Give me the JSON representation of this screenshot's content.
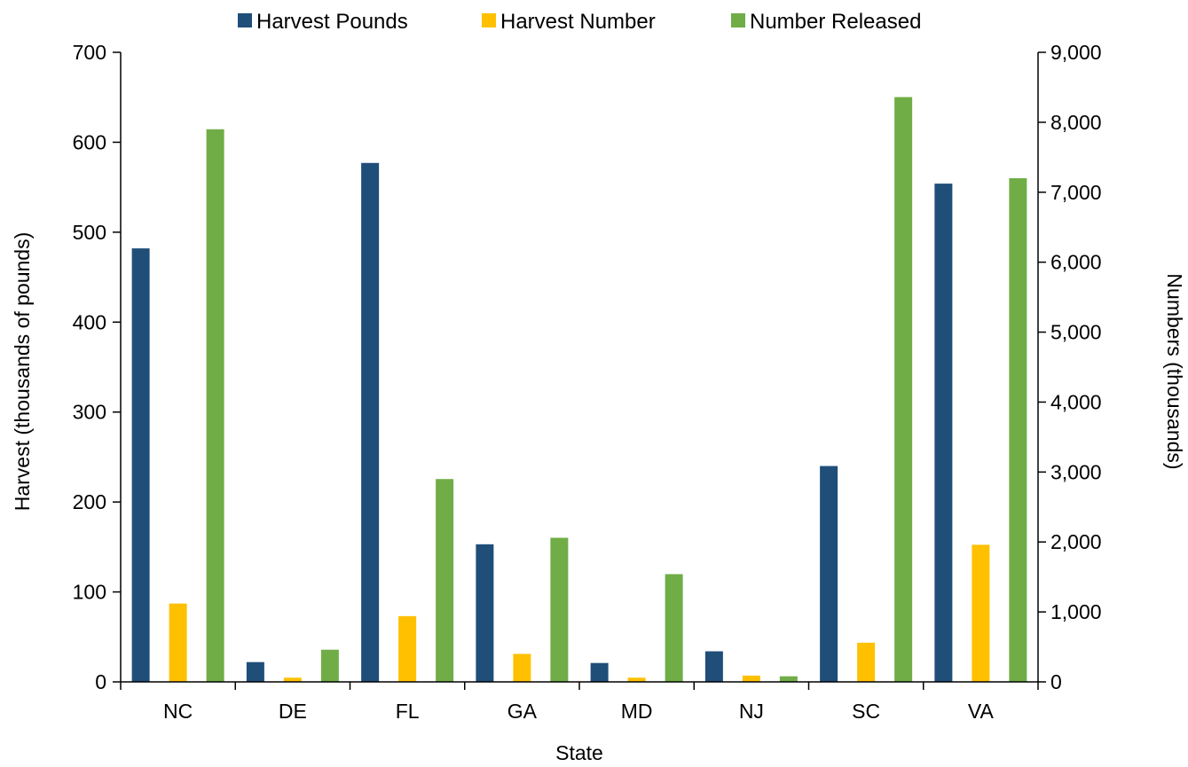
{
  "chart_data": {
    "type": "bar",
    "categories": [
      "NC",
      "DE",
      "FL",
      "GA",
      "MD",
      "NJ",
      "SC",
      "VA"
    ],
    "xlabel": "State",
    "ylabel": "Harvest (thousands  of pounds)",
    "y2label": "Numbers (thousands)",
    "ylim": [
      0,
      700
    ],
    "y2lim": [
      0,
      9000
    ],
    "yticks": [
      "0",
      "100",
      "200",
      "300",
      "400",
      "500",
      "600",
      "700"
    ],
    "y2ticks": [
      "0",
      "1,000",
      "2,000",
      "3,000",
      "4,000",
      "5,000",
      "6,000",
      "7,000",
      "8,000",
      "9,000"
    ],
    "legend_position": "top",
    "grid": false,
    "series": [
      {
        "name": "Harvest Pounds",
        "axis": "left",
        "color": "#1f4e79",
        "values": [
          482,
          22,
          577,
          153,
          21,
          34,
          240,
          554
        ]
      },
      {
        "name": "Harvest Number",
        "axis": "right",
        "color": "#ffc000",
        "values": [
          1120,
          60,
          940,
          400,
          60,
          90,
          560,
          1960
        ]
      },
      {
        "name": "Number Released",
        "axis": "right",
        "color": "#70ad47",
        "values": [
          7900,
          460,
          2900,
          2060,
          1540,
          80,
          8360,
          7200
        ]
      }
    ]
  }
}
